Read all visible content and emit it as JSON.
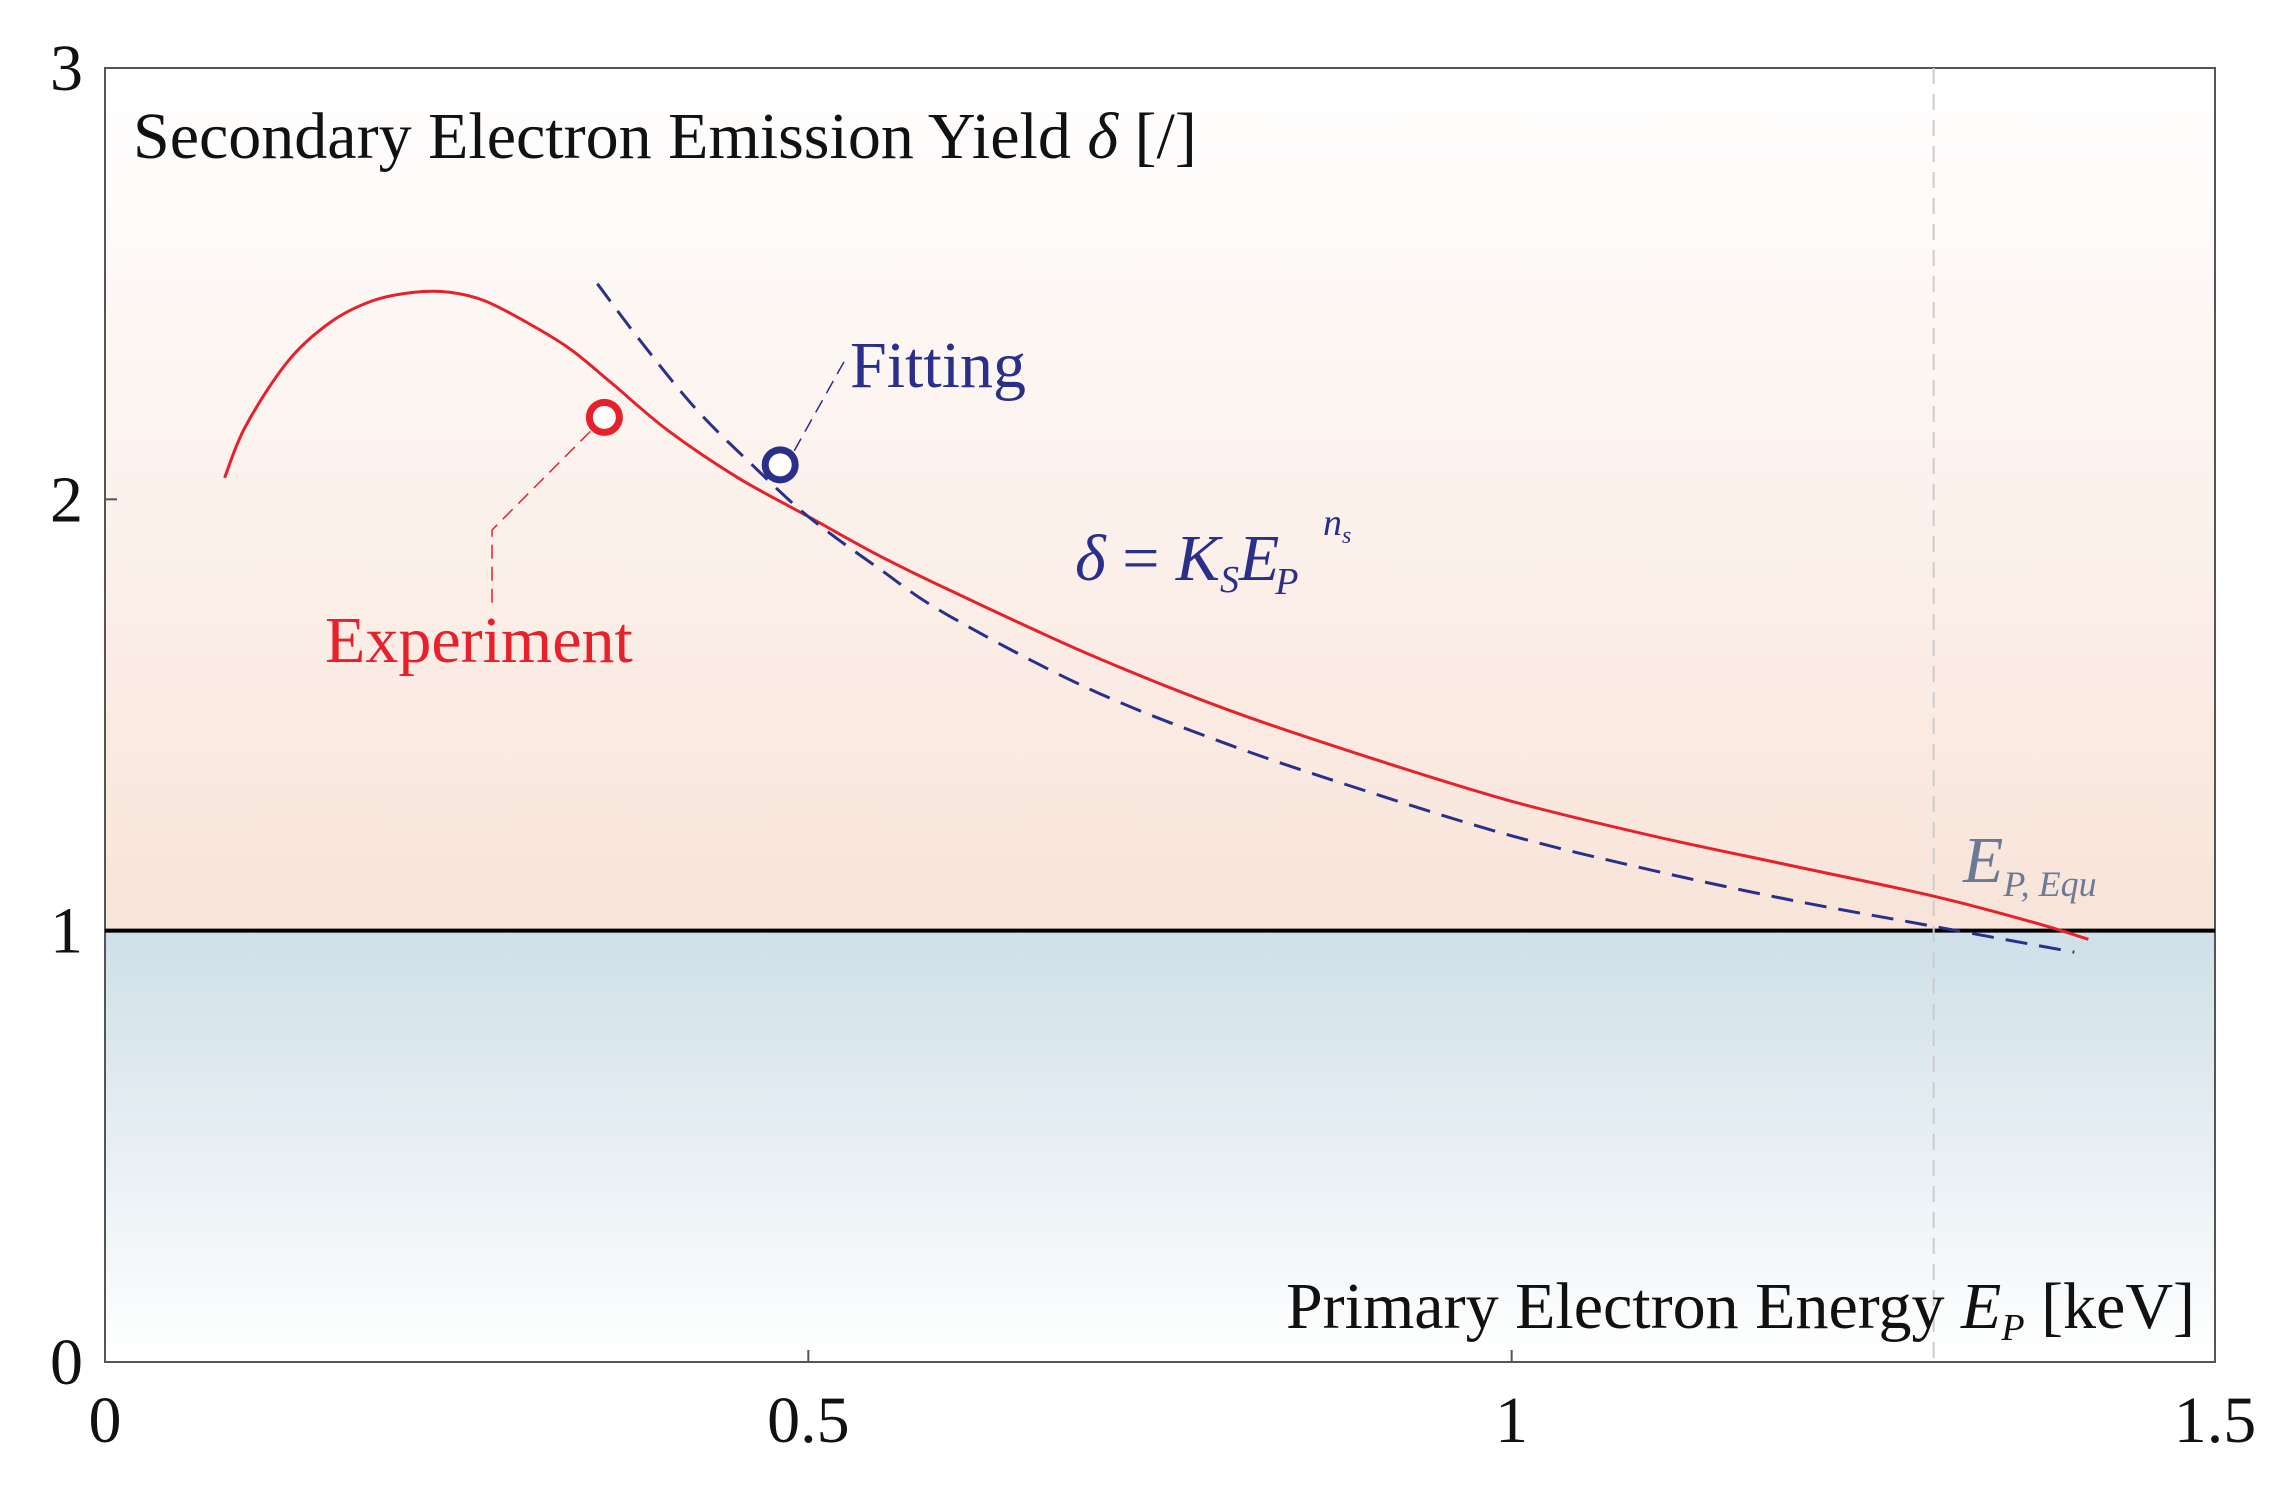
{
  "chart_data": {
    "type": "line",
    "title": "",
    "xlabel": {
      "prefix": "Primary Electron Energy ",
      "var": "E",
      "sub": "P",
      "suffix": " [keV]"
    },
    "ylabel": {
      "prefix": "Secondary Electron Emission Yield ",
      "var": "δ",
      "suffix": " [/]"
    },
    "xlim": [
      0,
      1.5
    ],
    "ylim": [
      0,
      3
    ],
    "x_ticks": [
      {
        "value": 0,
        "label": "0"
      },
      {
        "value": 0.5,
        "label": "0.5"
      },
      {
        "value": 1,
        "label": "1"
      },
      {
        "value": 1.5,
        "label": "1.5"
      }
    ],
    "y_ticks": [
      {
        "value": 0,
        "label": "0"
      },
      {
        "value": 1,
        "label": "1"
      },
      {
        "value": 2,
        "label": "2"
      },
      {
        "value": 3,
        "label": "3"
      }
    ],
    "reference_line_y": 1,
    "series": [
      {
        "name": "Experiment",
        "style": "solid",
        "color": "#e8202a",
        "x": [
          0.085,
          0.1,
          0.13,
          0.16,
          0.19,
          0.22,
          0.245,
          0.27,
          0.3,
          0.33,
          0.36,
          0.4,
          0.45,
          0.5,
          0.55,
          0.6,
          0.7,
          0.8,
          0.9,
          1.0,
          1.1,
          1.2,
          1.3,
          1.37,
          1.41
        ],
        "y": [
          2.05,
          2.17,
          2.32,
          2.41,
          2.46,
          2.48,
          2.48,
          2.46,
          2.41,
          2.35,
          2.27,
          2.16,
          2.05,
          1.96,
          1.87,
          1.79,
          1.64,
          1.51,
          1.4,
          1.3,
          1.22,
          1.15,
          1.08,
          1.02,
          0.98
        ]
      },
      {
        "name": "Fitting",
        "style": "dashed",
        "color": "#2a2f8a",
        "x": [
          0.35,
          0.38,
          0.42,
          0.46,
          0.5,
          0.55,
          0.6,
          0.7,
          0.8,
          0.9,
          1.0,
          1.1,
          1.2,
          1.3,
          1.4
        ],
        "y": [
          2.5,
          2.37,
          2.21,
          2.08,
          1.96,
          1.84,
          1.73,
          1.56,
          1.43,
          1.32,
          1.22,
          1.14,
          1.07,
          1.01,
          0.95
        ]
      }
    ],
    "markers": [
      {
        "name": "experiment-marker",
        "x": 0.355,
        "y": 2.19,
        "color": "#e8202a"
      },
      {
        "name": "fitting-marker",
        "x": 0.48,
        "y": 2.08,
        "color": "#2a2f8a"
      }
    ],
    "equilibrium_x": 1.3,
    "annotations": {
      "experiment_label": "Experiment",
      "fitting_label": "Fitting",
      "formula": {
        "lhs": "δ",
        "eq": " = ",
        "k": "K",
        "k_sub": "S",
        "e": "E",
        "e_sub": "P",
        "exp": "n",
        "exp_sub": "s"
      },
      "equilibrium": {
        "var": "E",
        "sub": "P, Equ"
      }
    },
    "colors": {
      "upper_region_top": "#ffffff",
      "upper_region_bottom": "#f8e4d9",
      "lower_region_top": "#cfdfe8",
      "lower_region_bottom": "#ffffff",
      "axis": "#555555",
      "reference_line": "#000000",
      "equilibrium_label": "#6c7a96"
    }
  }
}
